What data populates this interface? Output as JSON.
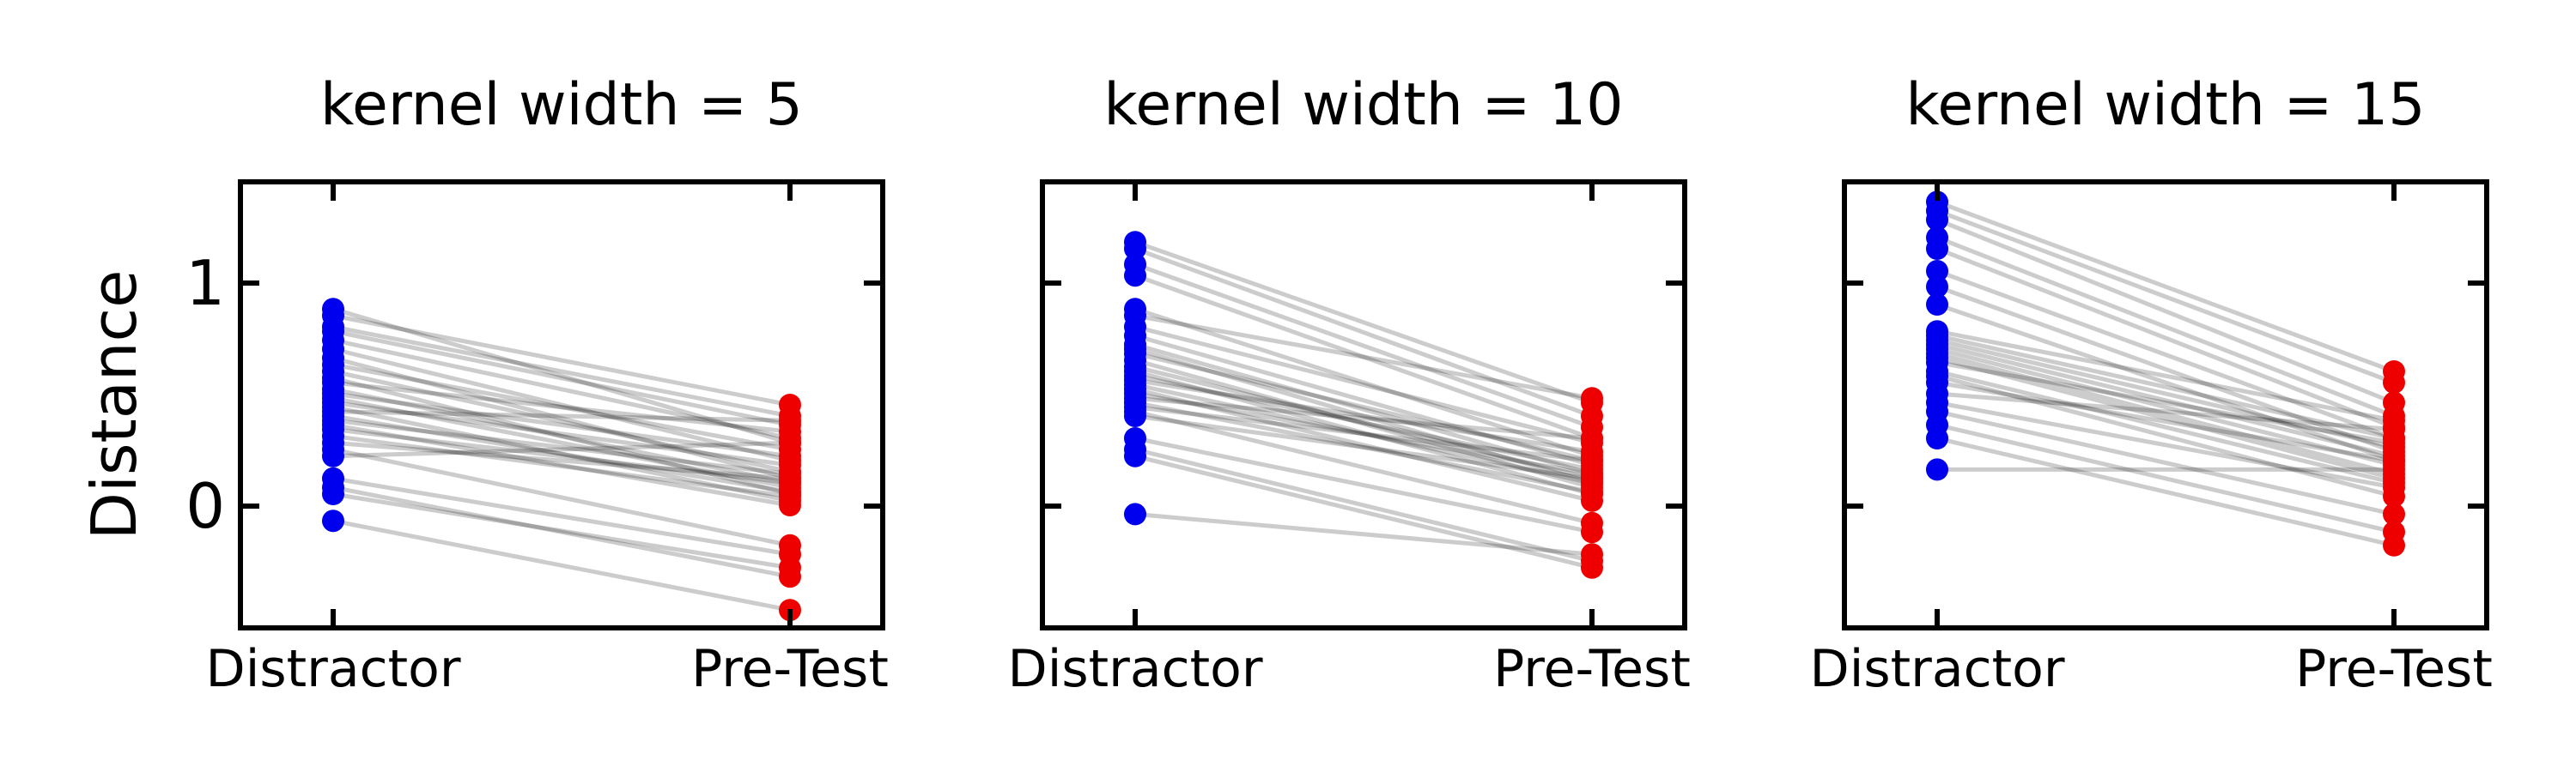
{
  "colors": {
    "distractor": "#0000ee",
    "pretest": "#ee0000",
    "line": "#000000"
  },
  "chart_data": [
    {
      "type": "scatter",
      "title": "kernel width = 5",
      "categories": [
        "Distractor",
        "Pre-Test"
      ],
      "ylabel": "Distance",
      "yticks": [
        0,
        1
      ],
      "ylim": [
        -0.55,
        1.45
      ],
      "grid": false,
      "pairs": [
        [
          0.88,
          0.28
        ],
        [
          0.85,
          0.45
        ],
        [
          0.8,
          0.4
        ],
        [
          0.78,
          0.36
        ],
        [
          0.74,
          0.3
        ],
        [
          0.7,
          0.2
        ],
        [
          0.66,
          0.12
        ],
        [
          0.63,
          0.25
        ],
        [
          0.6,
          0.15
        ],
        [
          0.57,
          0.05
        ],
        [
          0.55,
          0.33
        ],
        [
          0.52,
          0.1
        ],
        [
          0.5,
          0.22
        ],
        [
          0.48,
          0.08
        ],
        [
          0.46,
          0.18
        ],
        [
          0.44,
          0.02
        ],
        [
          0.42,
          0.38
        ],
        [
          0.4,
          0.06
        ],
        [
          0.38,
          0.14
        ],
        [
          0.36,
          0.0
        ],
        [
          0.34,
          0.1
        ],
        [
          0.31,
          0.04
        ],
        [
          0.28,
          0.12
        ],
        [
          0.25,
          -0.18
        ],
        [
          0.22,
          0.28
        ],
        [
          0.12,
          -0.22
        ],
        [
          0.08,
          -0.32
        ],
        [
          0.05,
          -0.28
        ],
        [
          -0.07,
          -0.47
        ]
      ]
    },
    {
      "type": "scatter",
      "title": "kernel width = 10",
      "categories": [
        "Distractor",
        "Pre-Test"
      ],
      "ylabel": "",
      "yticks": [
        0,
        1
      ],
      "ylim": [
        -0.55,
        1.45
      ],
      "grid": false,
      "pairs": [
        [
          1.18,
          0.46
        ],
        [
          1.15,
          0.4
        ],
        [
          1.08,
          0.35
        ],
        [
          1.03,
          0.3
        ],
        [
          0.88,
          0.22
        ],
        [
          0.85,
          0.48
        ],
        [
          0.8,
          0.28
        ],
        [
          0.76,
          0.18
        ],
        [
          0.72,
          0.14
        ],
        [
          0.7,
          0.1
        ],
        [
          0.68,
          0.2
        ],
        [
          0.65,
          0.08
        ],
        [
          0.62,
          0.12
        ],
        [
          0.6,
          0.05
        ],
        [
          0.58,
          0.16
        ],
        [
          0.56,
          0.24
        ],
        [
          0.54,
          0.1
        ],
        [
          0.52,
          0.02
        ],
        [
          0.5,
          0.14
        ],
        [
          0.48,
          0.3
        ],
        [
          0.46,
          0.06
        ],
        [
          0.44,
          0.2
        ],
        [
          0.42,
          -0.08
        ],
        [
          0.4,
          0.12
        ],
        [
          0.3,
          -0.12
        ],
        [
          0.25,
          -0.25
        ],
        [
          0.22,
          -0.28
        ],
        [
          -0.04,
          -0.22
        ]
      ]
    },
    {
      "type": "scatter",
      "title": "kernel width = 15",
      "categories": [
        "Distractor",
        "Pre-Test"
      ],
      "ylabel": "",
      "yticks": [
        0,
        1
      ],
      "ylim": [
        -0.55,
        1.45
      ],
      "grid": false,
      "pairs": [
        [
          1.36,
          0.6
        ],
        [
          1.32,
          0.55
        ],
        [
          1.28,
          0.46
        ],
        [
          1.2,
          0.4
        ],
        [
          1.15,
          0.35
        ],
        [
          1.05,
          0.3
        ],
        [
          0.98,
          0.24
        ],
        [
          0.9,
          0.2
        ],
        [
          0.78,
          0.38
        ],
        [
          0.76,
          0.3
        ],
        [
          0.74,
          0.26
        ],
        [
          0.72,
          0.22
        ],
        [
          0.7,
          0.18
        ],
        [
          0.68,
          0.14
        ],
        [
          0.66,
          0.12
        ],
        [
          0.64,
          0.28
        ],
        [
          0.6,
          0.1
        ],
        [
          0.58,
          0.04
        ],
        [
          0.55,
          0.2
        ],
        [
          0.5,
          0.34
        ],
        [
          0.46,
          0.08
        ],
        [
          0.42,
          -0.04
        ],
        [
          0.36,
          -0.12
        ],
        [
          0.3,
          -0.18
        ],
        [
          0.16,
          0.16
        ]
      ]
    }
  ]
}
